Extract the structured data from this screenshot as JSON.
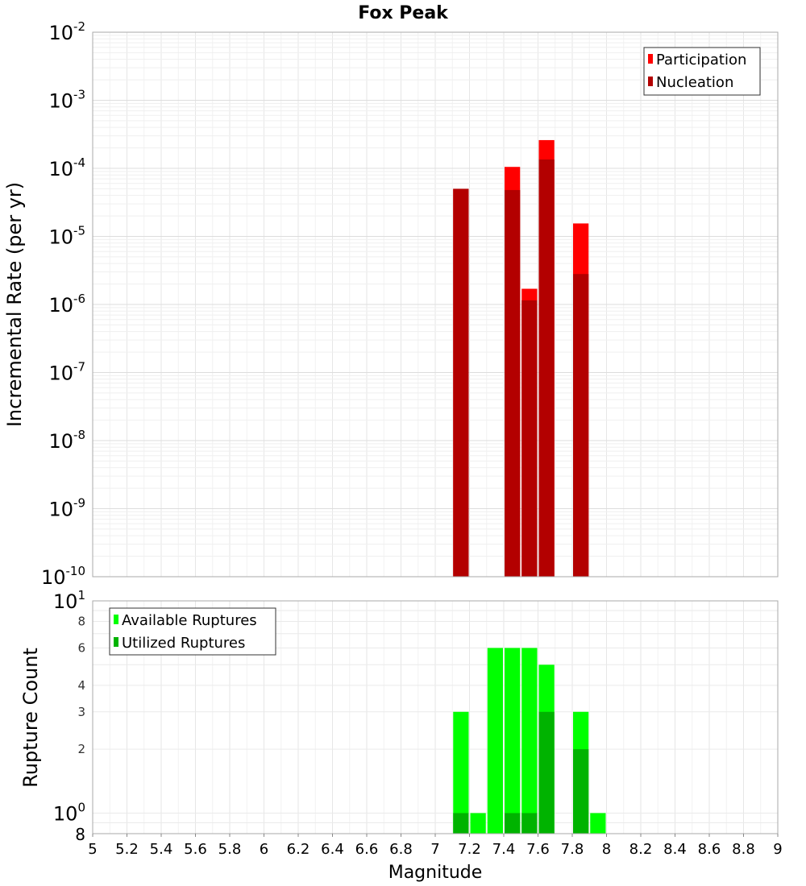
{
  "chart_data": [
    {
      "type": "bar",
      "title": "Fox Peak",
      "xlabel": "Magnitude",
      "ylabel": "Incremental Rate (per yr)",
      "yscale": "log",
      "ylim": [
        1e-10,
        0.01
      ],
      "xlim": [
        5,
        9
      ],
      "bar_width": 0.1,
      "grid": true,
      "legend_position": "top-right",
      "series": [
        {
          "name": "Participation",
          "color": "#ff0000",
          "x": [
            7.15,
            7.45,
            7.55,
            7.65,
            7.85
          ],
          "values": [
            5e-05,
            0.000105,
            1.7e-06,
            0.00026,
            1.55e-05
          ]
        },
        {
          "name": "Nucleation",
          "color": "#b30000",
          "x": [
            7.15,
            7.45,
            7.55,
            7.65,
            7.85
          ],
          "values": [
            5e-05,
            4.8e-05,
            1.15e-06,
            0.000135,
            2.8e-06
          ]
        }
      ]
    },
    {
      "type": "bar",
      "title": "",
      "xlabel": "Magnitude",
      "ylabel": "Rupture Count",
      "yscale": "log",
      "ylim": [
        0.8,
        10
      ],
      "xlim": [
        5,
        9
      ],
      "bar_width": 0.1,
      "grid": true,
      "legend_position": "top-left",
      "series": [
        {
          "name": "Available Ruptures",
          "color": "#00ff00",
          "x": [
            7.15,
            7.25,
            7.35,
            7.45,
            7.55,
            7.65,
            7.85,
            7.95
          ],
          "values": [
            3,
            1,
            6,
            6,
            6,
            5,
            3,
            1
          ]
        },
        {
          "name": "Utilized Ruptures",
          "color": "#00b300",
          "x": [
            7.15,
            7.45,
            7.55,
            7.65,
            7.85
          ],
          "values": [
            1,
            1,
            1,
            3,
            2
          ]
        }
      ]
    }
  ],
  "axes": {
    "x_ticks": [
      "5",
      "5.2",
      "5.4",
      "5.6",
      "5.8",
      "6",
      "6.2",
      "6.4",
      "6.6",
      "6.8",
      "7",
      "7.2",
      "7.4",
      "7.6",
      "7.8",
      "8",
      "8.2",
      "8.4",
      "8.6",
      "8.8",
      "9"
    ],
    "top_y_ticks": [
      {
        "base": "10",
        "exp": "-2"
      },
      {
        "base": "10",
        "exp": "-3"
      },
      {
        "base": "10",
        "exp": "-4"
      },
      {
        "base": "10",
        "exp": "-5"
      },
      {
        "base": "10",
        "exp": "-6"
      },
      {
        "base": "10",
        "exp": "-7"
      },
      {
        "base": "10",
        "exp": "-8"
      },
      {
        "base": "10",
        "exp": "-9"
      },
      {
        "base": "10",
        "exp": "-10"
      }
    ],
    "bottom_y_major_ticks": [
      {
        "base": "10",
        "exp": "1"
      },
      {
        "base": "10",
        "exp": "0"
      }
    ],
    "bottom_y_minor_ticks": [
      "8",
      "6",
      "4",
      "3",
      "2",
      "8"
    ]
  }
}
